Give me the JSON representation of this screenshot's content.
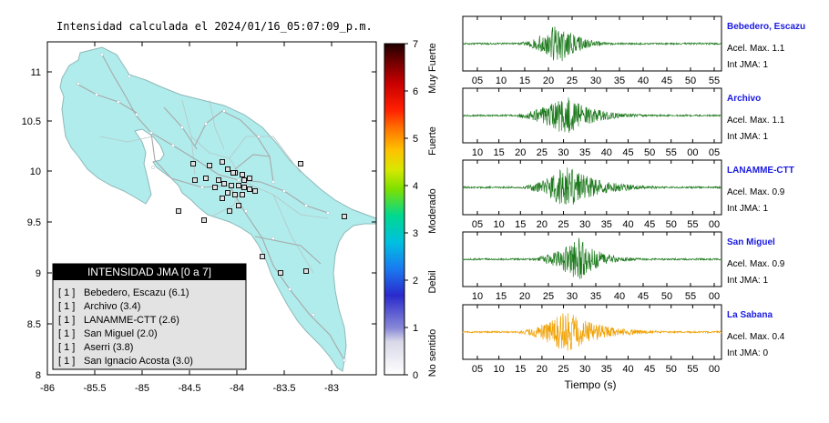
{
  "map": {
    "title": "Intensidad calculada el 2024/01/16_05:07:09_p.m.",
    "lon_ticks": [
      "-86",
      "-85.5",
      "-85",
      "-84.5",
      "-84",
      "-83.5",
      "-83"
    ],
    "lat_ticks": [
      "11",
      "10.5",
      "10",
      "9.5",
      "9",
      "8.5",
      "8"
    ],
    "legend": {
      "header": "INTENSIDAD JMA [0 a 7]",
      "stations": [
        {
          "intensity": "[ 1 ]",
          "name": "Bebedero, Escazu (6.1)"
        },
        {
          "intensity": "[ 1 ]",
          "name": "Archivo (3.4)"
        },
        {
          "intensity": "[ 1 ]",
          "name": "LANAMME-CTT (2.6)"
        },
        {
          "intensity": "[ 1 ]",
          "name": "San Miguel (2.0)"
        },
        {
          "intensity": "[ 1 ]",
          "name": "Aserri (3.8)"
        },
        {
          "intensity": "[ 1 ]",
          "name": "San Ignacio Acosta (3.0)"
        }
      ]
    }
  },
  "colorbar": {
    "ticks": [
      "0",
      "1",
      "2",
      "3",
      "4",
      "5",
      "6",
      "7"
    ],
    "labels": [
      "No sentido",
      "Debil",
      "Moderado",
      "Fuerte",
      "Muy Fuerte"
    ]
  },
  "chart_data": {
    "type": "line",
    "xlabel": "Tiempo (s)",
    "traces": [
      {
        "station": "Bebedero, Escazu",
        "accel": "Acel. Max. 1.1",
        "jma": "Int JMA: 1",
        "color": "#1e7a1e",
        "x_ticks": [
          "05",
          "10",
          "15",
          "20",
          "25",
          "30",
          "35",
          "40",
          "45",
          "50",
          "55"
        ]
      },
      {
        "station": "Archivo",
        "accel": "Acel. Max. 1.1",
        "jma": "Int JMA: 1",
        "color": "#1e7a1e",
        "x_ticks": [
          "10",
          "15",
          "20",
          "25",
          "30",
          "35",
          "40",
          "45",
          "50",
          "55",
          "00",
          "05"
        ]
      },
      {
        "station": "LANAMME-CTT",
        "accel": "Acel. Max. 0.9",
        "jma": "Int JMA: 1",
        "color": "#1e7a1e",
        "x_ticks": [
          "05",
          "10",
          "15",
          "20",
          "25",
          "30",
          "35",
          "40",
          "45",
          "50",
          "55",
          "00"
        ]
      },
      {
        "station": "San Miguel",
        "accel": "Acel. Max. 0.9",
        "jma": "Int JMA: 1",
        "color": "#1e7a1e",
        "x_ticks": [
          "10",
          "15",
          "20",
          "25",
          "30",
          "35",
          "40",
          "45",
          "50",
          "55",
          "00"
        ]
      },
      {
        "station": "La Sabana",
        "accel": "Acel. Max. 0.4",
        "jma": "Int JMA: 0",
        "color": "#f0a000",
        "x_ticks": [
          "05",
          "10",
          "15",
          "20",
          "25",
          "30",
          "35",
          "40",
          "45",
          "50",
          "55",
          "00"
        ]
      }
    ]
  }
}
